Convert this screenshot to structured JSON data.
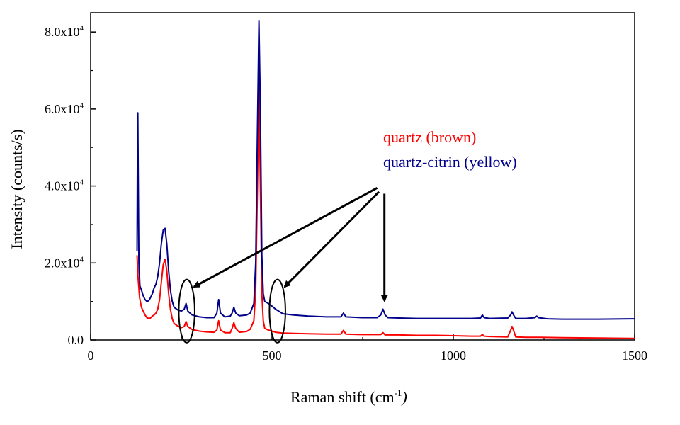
{
  "chart_data": {
    "type": "line",
    "xlabel": "Raman shift (cm",
    "xlabel_sup": "-1",
    "xlabel_close": ")",
    "ylabel": "Intensity (counts/s)",
    "xlim": [
      0,
      1500
    ],
    "ylim": [
      0,
      85000
    ],
    "xticks": [
      {
        "value": 0,
        "label": "0"
      },
      {
        "value": 500,
        "label": "500"
      },
      {
        "value": 1000,
        "label": "1000"
      },
      {
        "value": 1500,
        "label": "1500"
      }
    ],
    "yticks": [
      {
        "value": 0,
        "label": "0.0",
        "sup": ""
      },
      {
        "value": 20000,
        "label": "2.0x10",
        "sup": "4"
      },
      {
        "value": 40000,
        "label": "4.0x10",
        "sup": "4"
      },
      {
        "value": 60000,
        "label": "6.0x10",
        "sup": "4"
      },
      {
        "value": 80000,
        "label": "8.0x10",
        "sup": "4"
      }
    ],
    "grid": false,
    "legend_placement": "upper-right (inside)",
    "series": [
      {
        "name": "quartz (brown)",
        "color": "#ff0000",
        "points": [
          [
            128,
            22000
          ],
          [
            130,
            17000
          ],
          [
            135,
            11000
          ],
          [
            140,
            8500
          ],
          [
            145,
            7500
          ],
          [
            150,
            6500
          ],
          [
            155,
            5800
          ],
          [
            160,
            5600
          ],
          [
            165,
            5700
          ],
          [
            170,
            6200
          ],
          [
            175,
            6500
          ],
          [
            180,
            7000
          ],
          [
            185,
            8000
          ],
          [
            190,
            10500
          ],
          [
            195,
            15000
          ],
          [
            200,
            19500
          ],
          [
            205,
            21000
          ],
          [
            210,
            18000
          ],
          [
            215,
            12000
          ],
          [
            220,
            8000
          ],
          [
            225,
            5500
          ],
          [
            230,
            4300
          ],
          [
            240,
            3600
          ],
          [
            250,
            3200
          ],
          [
            258,
            3500
          ],
          [
            263,
            4800
          ],
          [
            268,
            3500
          ],
          [
            280,
            2700
          ],
          [
            300,
            2300
          ],
          [
            320,
            2100
          ],
          [
            340,
            2000
          ],
          [
            348,
            2600
          ],
          [
            353,
            5000
          ],
          [
            358,
            2600
          ],
          [
            370,
            1900
          ],
          [
            385,
            1900
          ],
          [
            390,
            3000
          ],
          [
            395,
            4500
          ],
          [
            400,
            3000
          ],
          [
            410,
            2000
          ],
          [
            430,
            2200
          ],
          [
            440,
            2800
          ],
          [
            450,
            5000
          ],
          [
            455,
            13000
          ],
          [
            460,
            40000
          ],
          [
            464,
            68000
          ],
          [
            468,
            40000
          ],
          [
            472,
            12000
          ],
          [
            476,
            5000
          ],
          [
            480,
            3000
          ],
          [
            490,
            2600
          ],
          [
            500,
            2300
          ],
          [
            510,
            2000
          ],
          [
            530,
            1800
          ],
          [
            560,
            1700
          ],
          [
            600,
            1600
          ],
          [
            650,
            1500
          ],
          [
            690,
            1500
          ],
          [
            697,
            2500
          ],
          [
            704,
            1500
          ],
          [
            750,
            1400
          ],
          [
            800,
            1400
          ],
          [
            806,
            1900
          ],
          [
            812,
            1300
          ],
          [
            850,
            1300
          ],
          [
            900,
            1200
          ],
          [
            950,
            1200
          ],
          [
            1000,
            1100
          ],
          [
            1050,
            1000
          ],
          [
            1075,
            1000
          ],
          [
            1080,
            1400
          ],
          [
            1085,
            1000
          ],
          [
            1100,
            900
          ],
          [
            1150,
            800
          ],
          [
            1158,
            2500
          ],
          [
            1162,
            3500
          ],
          [
            1166,
            2500
          ],
          [
            1172,
            800
          ],
          [
            1200,
            700
          ],
          [
            1230,
            700
          ],
          [
            1300,
            600
          ],
          [
            1400,
            500
          ],
          [
            1500,
            400
          ]
        ]
      },
      {
        "name": "quartz-citrin (yellow)",
        "color": "#00008b",
        "points": [
          [
            128,
            23000
          ],
          [
            129,
            45000
          ],
          [
            130,
            59000
          ],
          [
            131,
            45000
          ],
          [
            133,
            20000
          ],
          [
            136,
            14000
          ],
          [
            140,
            13000
          ],
          [
            145,
            11500
          ],
          [
            150,
            10500
          ],
          [
            155,
            10000
          ],
          [
            160,
            10200
          ],
          [
            165,
            11000
          ],
          [
            170,
            12000
          ],
          [
            175,
            13500
          ],
          [
            180,
            14500
          ],
          [
            185,
            16500
          ],
          [
            190,
            20000
          ],
          [
            195,
            25000
          ],
          [
            200,
            28500
          ],
          [
            205,
            29000
          ],
          [
            210,
            25000
          ],
          [
            215,
            18000
          ],
          [
            220,
            13000
          ],
          [
            225,
            10000
          ],
          [
            230,
            8500
          ],
          [
            240,
            7800
          ],
          [
            250,
            7500
          ],
          [
            258,
            8000
          ],
          [
            263,
            9500
          ],
          [
            268,
            7500
          ],
          [
            280,
            6500
          ],
          [
            300,
            6000
          ],
          [
            320,
            5800
          ],
          [
            340,
            5800
          ],
          [
            348,
            7000
          ],
          [
            353,
            10500
          ],
          [
            358,
            7000
          ],
          [
            370,
            6000
          ],
          [
            385,
            6200
          ],
          [
            390,
            7000
          ],
          [
            395,
            8500
          ],
          [
            400,
            7000
          ],
          [
            410,
            6300
          ],
          [
            430,
            6500
          ],
          [
            440,
            7000
          ],
          [
            450,
            9500
          ],
          [
            455,
            20000
          ],
          [
            460,
            55000
          ],
          [
            464,
            83000
          ],
          [
            468,
            60000
          ],
          [
            472,
            22000
          ],
          [
            476,
            12000
          ],
          [
            480,
            10000
          ],
          [
            490,
            9500
          ],
          [
            500,
            8800
          ],
          [
            510,
            8000
          ],
          [
            530,
            6800
          ],
          [
            560,
            6500
          ],
          [
            600,
            6200
          ],
          [
            650,
            6000
          ],
          [
            690,
            6000
          ],
          [
            697,
            7000
          ],
          [
            704,
            6000
          ],
          [
            750,
            5800
          ],
          [
            790,
            5800
          ],
          [
            800,
            6500
          ],
          [
            806,
            8000
          ],
          [
            812,
            6500
          ],
          [
            820,
            5800
          ],
          [
            850,
            5700
          ],
          [
            900,
            5600
          ],
          [
            950,
            5600
          ],
          [
            1000,
            5600
          ],
          [
            1050,
            5600
          ],
          [
            1075,
            5700
          ],
          [
            1080,
            6500
          ],
          [
            1085,
            5800
          ],
          [
            1100,
            5600
          ],
          [
            1150,
            5700
          ],
          [
            1158,
            6500
          ],
          [
            1162,
            7300
          ],
          [
            1166,
            6500
          ],
          [
            1172,
            5600
          ],
          [
            1200,
            5600
          ],
          [
            1225,
            5800
          ],
          [
            1230,
            6200
          ],
          [
            1235,
            5800
          ],
          [
            1260,
            5500
          ],
          [
            1300,
            5400
          ],
          [
            1400,
            5400
          ],
          [
            1500,
            5500
          ]
        ]
      }
    ],
    "annotations": {
      "arrow_start": {
        "x": 800,
        "y": 39000
      },
      "arrows": [
        {
          "from": {
            "x": 790,
            "y": 39500
          },
          "to": {
            "x": 285,
            "y": 13800
          }
        },
        {
          "from": {
            "x": 795,
            "y": 38500
          },
          "to": {
            "x": 535,
            "y": 13800
          }
        },
        {
          "from": {
            "x": 810,
            "y": 38000
          },
          "to": {
            "x": 810,
            "y": 10200
          }
        }
      ],
      "ellipses": [
        {
          "cx": 265,
          "cy": 7500,
          "rx": 22,
          "ry": 8200
        },
        {
          "cx": 515,
          "cy": 7500,
          "rx": 22,
          "ry": 8200
        }
      ]
    }
  }
}
